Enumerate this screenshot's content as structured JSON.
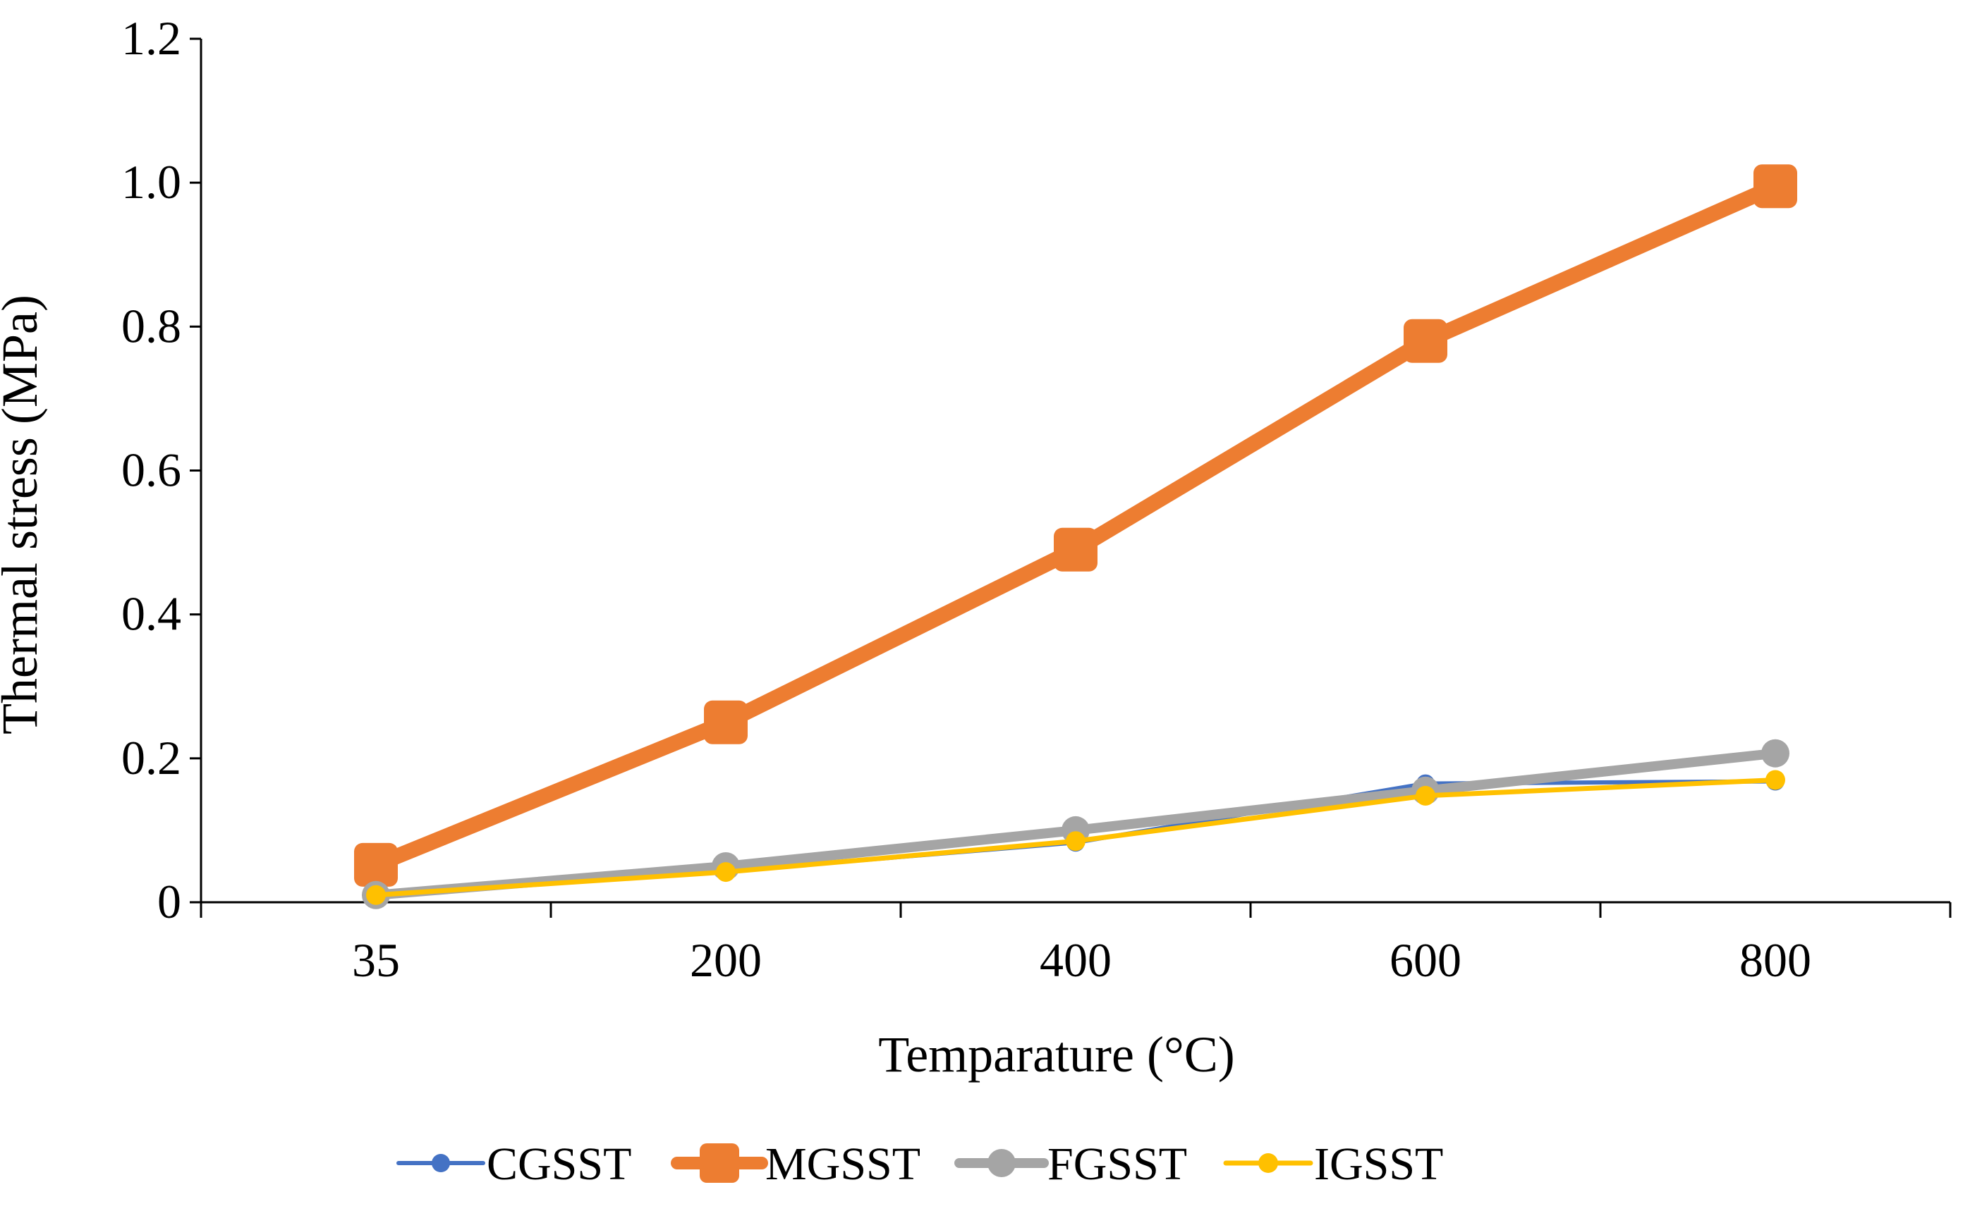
{
  "chart_data": {
    "type": "line",
    "title": "",
    "xlabel": "Temparature (°C)",
    "ylabel": "Thermal stress (MPa)",
    "categories": [
      "35",
      "200",
      "400",
      "600",
      "800"
    ],
    "ylim": [
      0,
      1.2
    ],
    "yticks": [
      0,
      0.2,
      0.4,
      0.6,
      0.8,
      1.0,
      1.2
    ],
    "ytick_labels": [
      "0",
      "0.2",
      "0.4",
      "0.6",
      "0.8",
      "1.0",
      "1.2"
    ],
    "grid": false,
    "legend_position": "bottom",
    "series": [
      {
        "name": "CGSST",
        "color": "#4472C4",
        "marker": "circle",
        "values": [
          0.01,
          0.043,
          0.083,
          0.165,
          0.168
        ]
      },
      {
        "name": "MGSST",
        "color": "#ED7D31",
        "marker": "square",
        "values": [
          0.052,
          0.25,
          0.49,
          0.78,
          0.995
        ]
      },
      {
        "name": "FGSST",
        "color": "#A5A5A5",
        "marker": "circle",
        "values": [
          0.01,
          0.05,
          0.1,
          0.155,
          0.207
        ]
      },
      {
        "name": "IGSST",
        "color": "#FFC000",
        "marker": "circle",
        "values": [
          0.01,
          0.042,
          0.085,
          0.148,
          0.17
        ]
      }
    ]
  }
}
